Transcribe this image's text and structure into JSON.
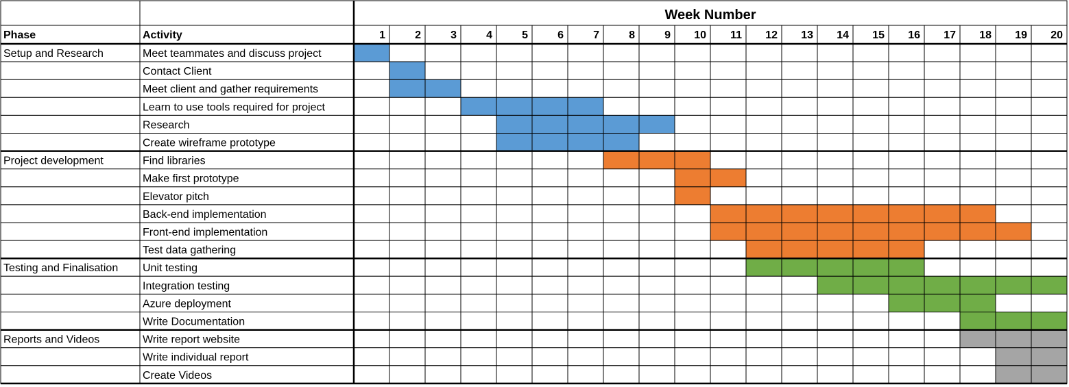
{
  "header": {
    "title": "Week Number",
    "phase_label": "Phase",
    "activity_label": "Activity"
  },
  "weeks": [
    "1",
    "2",
    "3",
    "4",
    "5",
    "6",
    "7",
    "8",
    "9",
    "10",
    "11",
    "12",
    "13",
    "14",
    "15",
    "16",
    "17",
    "18",
    "19",
    "20"
  ],
  "phase_colors": {
    "Setup and Research": "#5b9bd5",
    "Project development": "#ed7d31",
    "Testing and Finalisation": "#70ad47",
    "Reports and Videos": "#a5a5a5"
  },
  "phases": [
    {
      "name": "Setup and Research",
      "activities": [
        {
          "name": "Meet teammates and discuss project",
          "start": 1,
          "end": 1
        },
        {
          "name": "Contact Client",
          "start": 2,
          "end": 2
        },
        {
          "name": "Meet client and gather requirements",
          "start": 2,
          "end": 3
        },
        {
          "name": "Learn to use tools required for project",
          "start": 4,
          "end": 7
        },
        {
          "name": "Research",
          "start": 5,
          "end": 9
        },
        {
          "name": "Create wireframe prototype",
          "start": 5,
          "end": 8
        }
      ]
    },
    {
      "name": "Project development",
      "activities": [
        {
          "name": "Find libraries",
          "start": 8,
          "end": 10
        },
        {
          "name": "Make first prototype",
          "start": 10,
          "end": 11
        },
        {
          "name": "Elevator pitch",
          "start": 10,
          "end": 10
        },
        {
          "name": "Back-end implementation",
          "start": 11,
          "end": 18
        },
        {
          "name": "Front-end implementation",
          "start": 11,
          "end": 19
        },
        {
          "name": "Test data gathering",
          "start": 12,
          "end": 16
        }
      ]
    },
    {
      "name": "Testing and Finalisation",
      "activities": [
        {
          "name": "Unit testing",
          "start": 12,
          "end": 16
        },
        {
          "name": "Integration testing",
          "start": 14,
          "end": 20
        },
        {
          "name": "Azure deployment",
          "start": 16,
          "end": 18
        },
        {
          "name": "Write Documentation",
          "start": 18,
          "end": 20
        }
      ]
    },
    {
      "name": "Reports and Videos",
      "activities": [
        {
          "name": "Write report website",
          "start": 18,
          "end": 20
        },
        {
          "name": "Write individual report",
          "start": 19,
          "end": 20
        },
        {
          "name": "Create Videos",
          "start": 19,
          "end": 20
        }
      ]
    }
  ]
}
